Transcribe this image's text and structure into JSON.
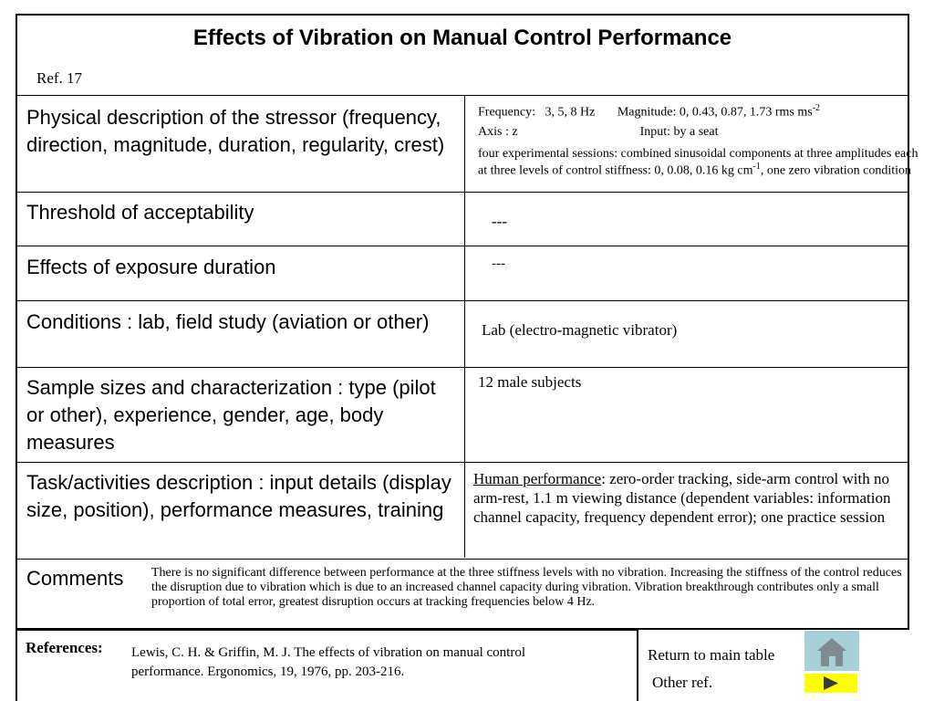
{
  "header": {
    "title": "Effects of Vibration on Manual Control Performance",
    "ref": "Ref. 17"
  },
  "rows": {
    "stressor": {
      "label": "Physical description of  the stressor (frequency, direction, magnitude, duration, regularity, crest)",
      "frequency_label": "Frequency:",
      "frequency_value": "3, 5, 8 Hz",
      "magnitude_label": "Magnitude: 0, 0.43, 0.87, 1.73 rms ms",
      "magnitude_sup": "-2",
      "axis": "Axis : z",
      "input": "Input: by a seat",
      "sessions_main": "four experimental sessions: combined sinusoidal components at three amplitudes each at three levels of control stiffness: 0, 0.08, 0.16 kg cm",
      "sessions_sup": "-1",
      "sessions_tail": ", one zero vibration condition"
    },
    "threshold": {
      "label": "Threshold of acceptability",
      "value": "---"
    },
    "exposure": {
      "label": "Effects of exposure duration",
      "value": "---"
    },
    "conditions": {
      "label": "Conditions : lab, field study (aviation or other)",
      "value": "Lab (electro-magnetic vibrator)"
    },
    "sample": {
      "label": "Sample sizes and characterization : type (pilot or other), experience, gender, age, body measures",
      "value": "12 male subjects"
    },
    "task": {
      "label": "Task/activities description : input details (display size, position), performance measures, training",
      "value_heading": "Human performance",
      "value_body": ": zero-order tracking, side-arm control with no arm-rest, 1.1 m viewing distance (dependent variables: information channel capacity, frequency dependent error); one practice session"
    },
    "comments": {
      "label": "Comments",
      "value": "There is no significant difference between performance at the three stiffness levels with no vibration. Increasing the stiffness of the control reduces the disruption due to vibration which is due to an increased channel capacity during vibration. Vibration breakthrough contributes only a small proportion of total error, greatest disruption occurs at tracking frequencies below 4 Hz."
    }
  },
  "references": {
    "label": "References:",
    "text": "Lewis, C. H. & Griffin, M. J.  The effects of vibration on manual control performance. Ergonomics, 19, 1976, pp. 203-216."
  },
  "nav": {
    "return_label": "Return to main table",
    "other_label": "Other ref.",
    "home_icon": "house-icon",
    "next_icon": "play-arrow-icon"
  },
  "colors": {
    "home_button": "#a7d0d8",
    "next_button": "#ffff00"
  }
}
